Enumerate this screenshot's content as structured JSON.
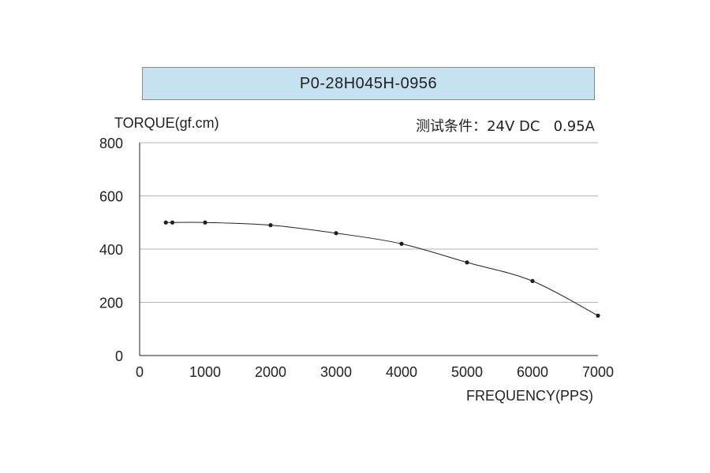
{
  "chart_data": {
    "type": "line",
    "title": "P0-28H045H-0956",
    "ylabel": "TORQUE(gf.cm)",
    "xlabel": "FREQUENCY(PPS)",
    "annotation": {
      "condition_label": "测试条件：",
      "condition_value": "24V DC   0.95A"
    },
    "xlim": [
      0,
      7000
    ],
    "ylim": [
      0,
      800
    ],
    "xticks": [
      0,
      1000,
      2000,
      3000,
      4000,
      5000,
      6000,
      7000
    ],
    "yticks": [
      0,
      200,
      400,
      600,
      800
    ],
    "grid": true,
    "series": [
      {
        "x": [
          400,
          500,
          1000,
          2000,
          3000,
          4000,
          5000,
          6000,
          7000
        ],
        "y": [
          500,
          500,
          500,
          490,
          460,
          420,
          350,
          280,
          150
        ]
      }
    ],
    "colors": {
      "line": "#231f20",
      "grid": "#b3b3b3",
      "title_bg": "#c6e2f1"
    }
  }
}
